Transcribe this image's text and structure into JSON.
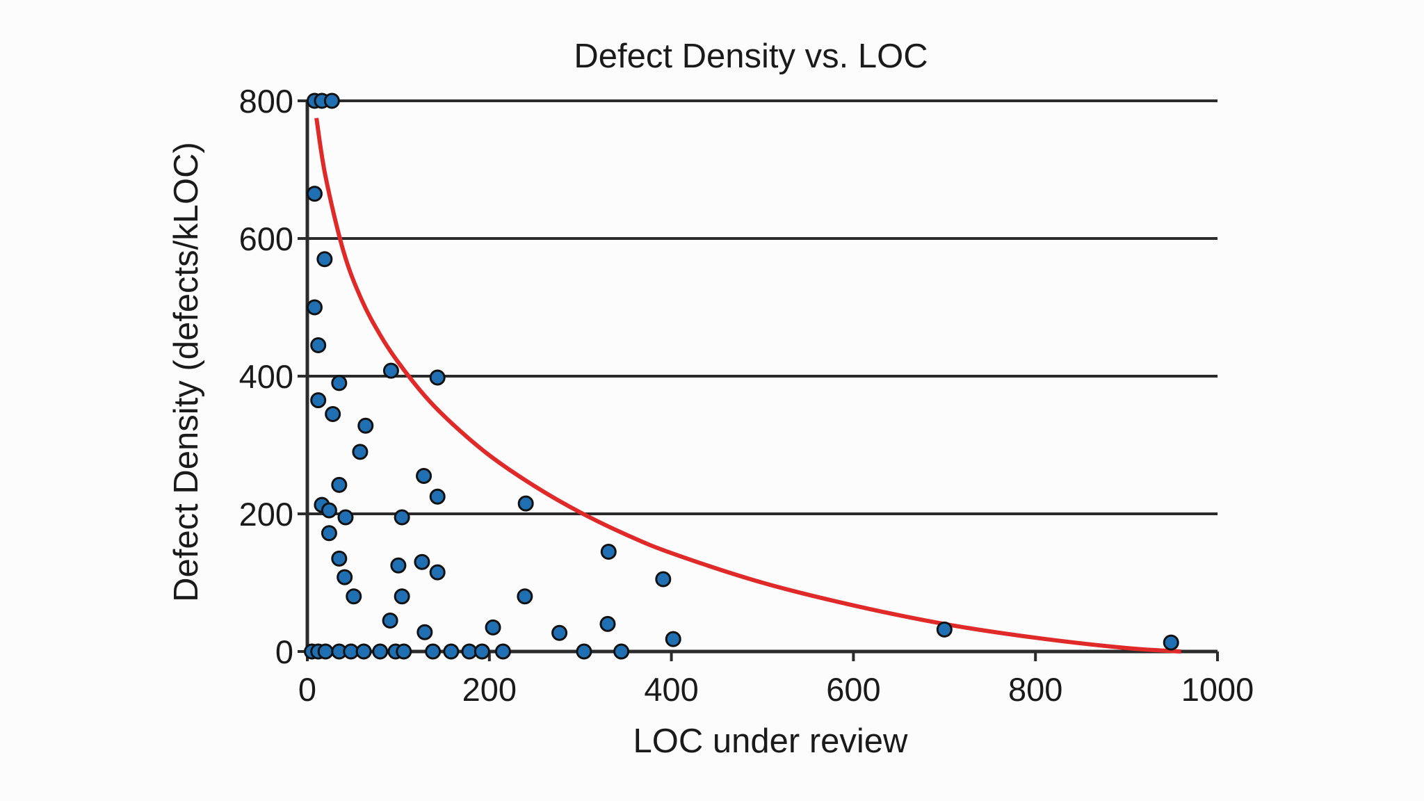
{
  "chart_data": {
    "type": "scatter",
    "title": "Defect Density vs. LOC",
    "xlabel": "LOC under review",
    "ylabel": "Defect Density (defects/kLOC)",
    "xlim": [
      0,
      1000
    ],
    "ylim": [
      0,
      800
    ],
    "x_ticks": [
      0,
      200,
      400,
      600,
      800,
      1000
    ],
    "y_ticks": [
      0,
      200,
      400,
      600,
      800
    ],
    "grid": "horizontal",
    "legend": "none",
    "colors": {
      "points": "#1f6fb2",
      "point_outline": "#111111",
      "fit_line": "#e02a2a",
      "grid": "#2b2b2b"
    },
    "points": [
      {
        "x": 8,
        "y": 800
      },
      {
        "x": 16,
        "y": 800
      },
      {
        "x": 27,
        "y": 800
      },
      {
        "x": 8,
        "y": 665
      },
      {
        "x": 19,
        "y": 570
      },
      {
        "x": 8,
        "y": 500
      },
      {
        "x": 12,
        "y": 445
      },
      {
        "x": 92,
        "y": 408
      },
      {
        "x": 143,
        "y": 398
      },
      {
        "x": 35,
        "y": 390
      },
      {
        "x": 12,
        "y": 365
      },
      {
        "x": 28,
        "y": 345
      },
      {
        "x": 64,
        "y": 328
      },
      {
        "x": 58,
        "y": 290
      },
      {
        "x": 128,
        "y": 255
      },
      {
        "x": 35,
        "y": 242
      },
      {
        "x": 143,
        "y": 225
      },
      {
        "x": 240,
        "y": 215
      },
      {
        "x": 16,
        "y": 213
      },
      {
        "x": 24,
        "y": 205
      },
      {
        "x": 42,
        "y": 195
      },
      {
        "x": 104,
        "y": 195
      },
      {
        "x": 24,
        "y": 172
      },
      {
        "x": 331,
        "y": 145
      },
      {
        "x": 35,
        "y": 135
      },
      {
        "x": 126,
        "y": 130
      },
      {
        "x": 100,
        "y": 125
      },
      {
        "x": 143,
        "y": 115
      },
      {
        "x": 41,
        "y": 108
      },
      {
        "x": 391,
        "y": 105
      },
      {
        "x": 51,
        "y": 80
      },
      {
        "x": 104,
        "y": 80
      },
      {
        "x": 239,
        "y": 80
      },
      {
        "x": 91,
        "y": 45
      },
      {
        "x": 330,
        "y": 40
      },
      {
        "x": 204,
        "y": 35
      },
      {
        "x": 700,
        "y": 32
      },
      {
        "x": 129,
        "y": 28
      },
      {
        "x": 277,
        "y": 27
      },
      {
        "x": 402,
        "y": 18
      },
      {
        "x": 949,
        "y": 13
      },
      {
        "x": 5,
        "y": 0
      },
      {
        "x": 12,
        "y": 0
      },
      {
        "x": 20,
        "y": 0
      },
      {
        "x": 35,
        "y": 0
      },
      {
        "x": 48,
        "y": 0
      },
      {
        "x": 62,
        "y": 0
      },
      {
        "x": 80,
        "y": 0
      },
      {
        "x": 97,
        "y": 0
      },
      {
        "x": 106,
        "y": 0
      },
      {
        "x": 138,
        "y": 0
      },
      {
        "x": 158,
        "y": 0
      },
      {
        "x": 178,
        "y": 0
      },
      {
        "x": 192,
        "y": 0
      },
      {
        "x": 215,
        "y": 0
      },
      {
        "x": 304,
        "y": 0
      },
      {
        "x": 345,
        "y": 0
      }
    ],
    "fit_line": {
      "x": [
        10,
        20,
        40,
        60,
        80,
        100,
        130,
        160,
        200,
        250,
        300,
        350,
        400,
        500,
        600,
        700,
        800,
        900,
        960
      ],
      "y": [
        775,
        690,
        580,
        510,
        460,
        420,
        370,
        330,
        285,
        240,
        202,
        170,
        143,
        100,
        67,
        40,
        20,
        5,
        0
      ]
    }
  }
}
